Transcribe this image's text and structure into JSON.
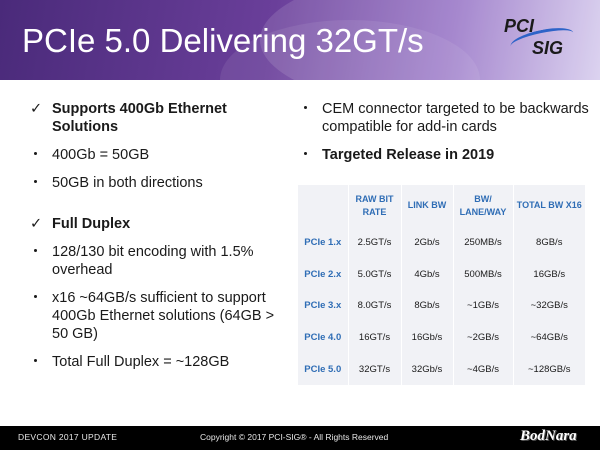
{
  "title": "PCIe 5.0 Delivering 32GT/s",
  "logo": {
    "line1": "PCI",
    "line2": "SIG"
  },
  "left": {
    "check1": "Supports 400Gb Ethernet Solutions",
    "b1": "400Gb = 50GB",
    "b2": "50GB in both directions",
    "check2": "Full Duplex",
    "b3": "128/130 bit encoding with 1.5% overhead",
    "b4": "x16 ~64GB/s sufficient to support 400Gb Ethernet solutions (64GB > 50 GB)",
    "b5": "Total Full Duplex = ~128GB"
  },
  "right": {
    "b1": "CEM connector targeted to be backwards compatible for add-in cards",
    "b2": "Targeted Release in 2019"
  },
  "table": {
    "headers": [
      "",
      "RAW BIT RATE",
      "LINK BW",
      "BW/ LANE/WAY",
      "TOTAL BW X16"
    ],
    "rows": [
      [
        "PCIe 1.x",
        "2.5GT/s",
        "2Gb/s",
        "250MB/s",
        "8GB/s"
      ],
      [
        "PCIe 2.x",
        "5.0GT/s",
        "4Gb/s",
        "500MB/s",
        "16GB/s"
      ],
      [
        "PCIe 3.x",
        "8.0GT/s",
        "8Gb/s",
        "~1GB/s",
        "~32GB/s"
      ],
      [
        "PCIe 4.0",
        "16GT/s",
        "16Gb/s",
        "~2GB/s",
        "~64GB/s"
      ],
      [
        "PCIe 5.0",
        "32GT/s",
        "32Gb/s",
        "~4GB/s",
        "~128GB/s"
      ]
    ]
  },
  "footer": {
    "left": "DEVCON 2017 UPDATE",
    "center": "Copyright © 2017 PCI-SIG® - All Rights Reserved"
  },
  "watermark": "BodNara",
  "colors": {
    "accent": "#2f6db5",
    "header": "#5a3590"
  }
}
